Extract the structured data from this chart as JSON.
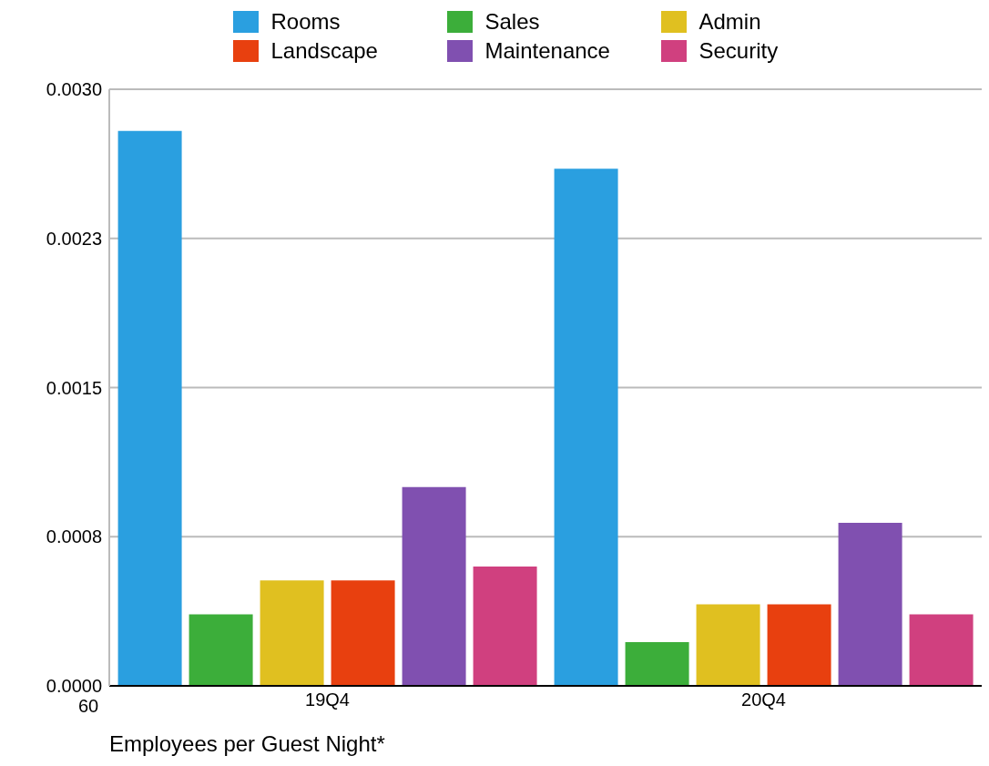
{
  "chart_data": {
    "type": "bar",
    "xlabel": "Employees per Guest Night*",
    "categories": [
      "19Q4",
      "20Q4"
    ],
    "series": [
      {
        "name": "Rooms",
        "color": "#2a9fe0",
        "values": [
          0.00279,
          0.0026
        ]
      },
      {
        "name": "Sales",
        "color": "#3cae3a",
        "values": [
          0.00036,
          0.00022
        ]
      },
      {
        "name": "Admin",
        "color": "#e0c020",
        "values": [
          0.00053,
          0.00041
        ]
      },
      {
        "name": "Landscape",
        "color": "#e8400f",
        "values": [
          0.00053,
          0.00041
        ]
      },
      {
        "name": "Maintenance",
        "color": "#8050b0",
        "values": [
          0.001,
          0.00082
        ]
      },
      {
        "name": "Security",
        "color": "#d0407f",
        "values": [
          0.0006,
          0.00036
        ]
      }
    ],
    "ylim": [
      0,
      0.003
    ],
    "yticks": [
      {
        "value": 0,
        "label": "0.0000"
      },
      {
        "value": 0.00075,
        "label": "0.0008"
      },
      {
        "value": 0.0015,
        "label": "0.0015"
      },
      {
        "value": 0.00225,
        "label": "0.0023"
      },
      {
        "value": 0.003,
        "label": "0.0030"
      }
    ],
    "grid": "y",
    "legend": "top",
    "annotations": [
      "60"
    ]
  }
}
